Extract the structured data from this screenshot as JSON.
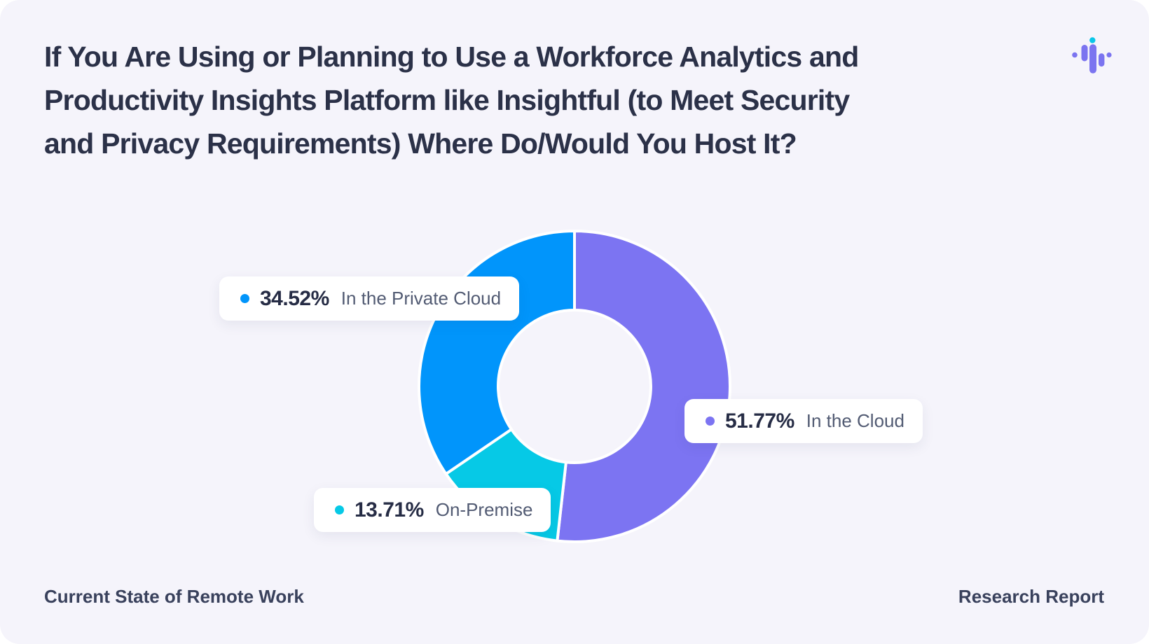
{
  "colors": {
    "canvas": "#ffffff",
    "card_background": "#f5f4fb",
    "title": "#2b3148",
    "footer_text": "#39415c",
    "label_number": "#262c45",
    "label_text": "#525b73",
    "label_card_background": "#ffffff"
  },
  "header": {
    "title_lines": [
      "If You Are Using or Planning to Use a Workforce Analytics and",
      "Productivity Insights Platform like Insightful (to Meet Security",
      "and Privacy Requirements) Where Do/Would You Host It?"
    ]
  },
  "logo": {
    "name": "insightful-soundwave-logo",
    "bar_color": "#7b74f0",
    "accent_dot_color": "#0ac6e8"
  },
  "chart_data": {
    "type": "pie",
    "variant": "donut",
    "donut_hole_ratio": 0.49,
    "start_angle_deg": 0,
    "direction": "clockwise",
    "segment_gap_color": "#ffffff",
    "legend_position": "floating-cards",
    "segments": [
      {
        "label": "In the Cloud",
        "value": 51.77,
        "display_value": "51.77%",
        "color": "#7c74f2"
      },
      {
        "label": "On-Premise",
        "value": 13.71,
        "display_value": "13.71%",
        "color": "#06c9e6"
      },
      {
        "label": "In the Private Cloud",
        "value": 34.52,
        "display_value": "34.52%",
        "color": "#0195fb"
      }
    ]
  },
  "footer": {
    "left_text": "Current State of Remote Work",
    "right_text": "Research Report"
  }
}
